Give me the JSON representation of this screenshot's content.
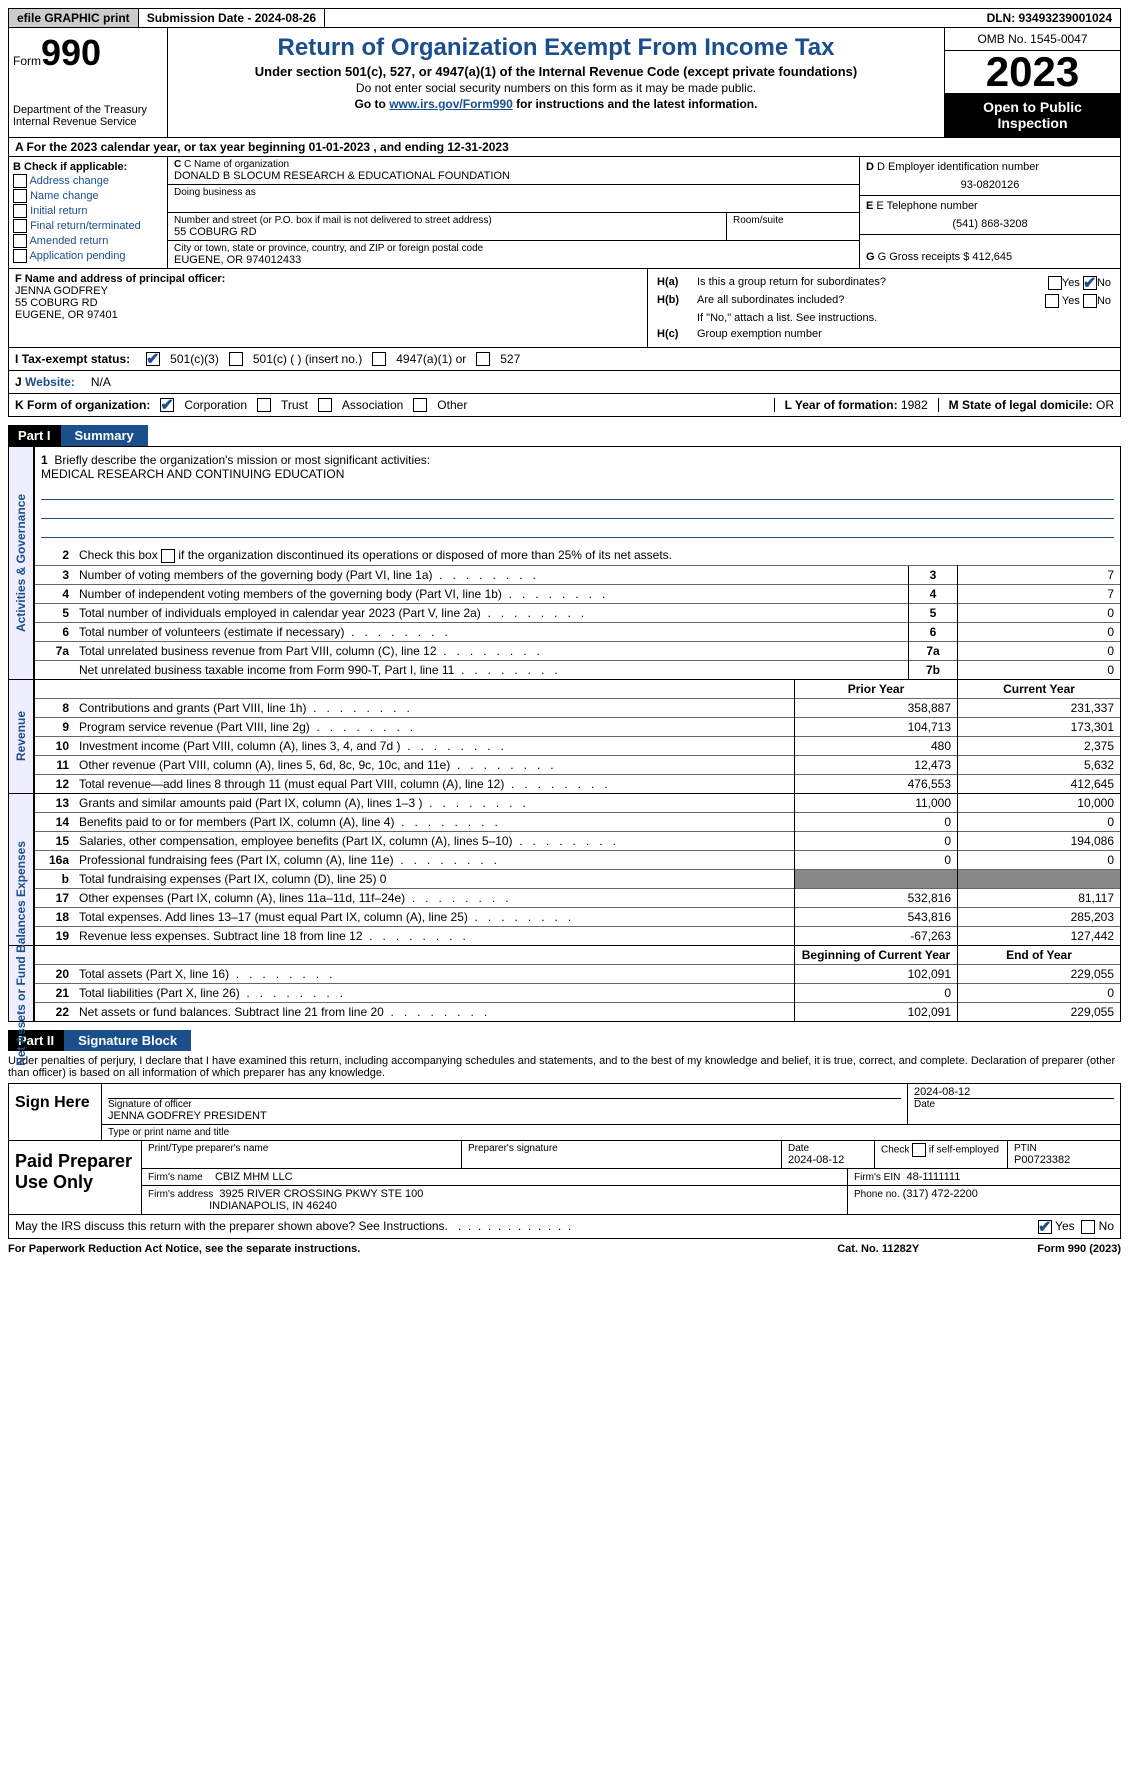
{
  "topbar": {
    "efile": "efile GRAPHIC print",
    "submission": "Submission Date - 2024-08-26",
    "dln": "DLN: 93493239001024"
  },
  "header": {
    "form_prefix": "Form",
    "form_num": "990",
    "dept": "Department of the Treasury Internal Revenue Service",
    "title": "Return of Organization Exempt From Income Tax",
    "sub1": "Under section 501(c), 527, or 4947(a)(1) of the Internal Revenue Code (except private foundations)",
    "sub2": "Do not enter social security numbers on this form as it may be made public.",
    "sub3_pre": "Go to ",
    "sub3_link": "www.irs.gov/Form990",
    "sub3_post": " for instructions and the latest information.",
    "omb": "OMB No. 1545-0047",
    "year": "2023",
    "open": "Open to Public Inspection"
  },
  "A": {
    "line": "A For the 2023 calendar year, or tax year beginning 01-01-2023    , and ending 12-31-2023"
  },
  "B": {
    "label": "B Check if applicable:",
    "opts": [
      "Address change",
      "Name change",
      "Initial return",
      "Final return/terminated",
      "Amended return",
      "Application pending"
    ]
  },
  "C": {
    "name_label": "C Name of organization",
    "name": "DONALD B SLOCUM RESEARCH & EDUCATIONAL FOUNDATION",
    "dba_label": "Doing business as",
    "dba": "",
    "addr_label": "Number and street (or P.O. box if mail is not delivered to street address)",
    "room_label": "Room/suite",
    "addr": "55 COBURG RD",
    "city_label": "City or town, state or province, country, and ZIP or foreign postal code",
    "city": "EUGENE, OR  974012433"
  },
  "D": {
    "label": "D Employer identification number",
    "val": "93-0820126"
  },
  "E": {
    "label": "E Telephone number",
    "val": "(541) 868-3208"
  },
  "G": {
    "label": "G Gross receipts $",
    "val": "412,645"
  },
  "F": {
    "label": "F  Name and address of principal officer:",
    "name": "JENNA GODFREY",
    "addr1": "55 COBURG RD",
    "addr2": "EUGENE, OR  97401"
  },
  "H": {
    "a_label": "Is this a group return for subordinates?",
    "a_yes": "Yes",
    "a_no": "No",
    "b_label": "Are all subordinates included?",
    "b_note": "If \"No,\" attach a list. See instructions.",
    "c_label": "Group exemption number"
  },
  "I": {
    "label": "Tax-exempt status:",
    "o1": "501(c)(3)",
    "o2": "501(c) (  ) (insert no.)",
    "o3": "4947(a)(1) or",
    "o4": "527"
  },
  "J": {
    "label": "Website:",
    "val": "N/A"
  },
  "K": {
    "label": "K Form of organization:",
    "o1": "Corporation",
    "o2": "Trust",
    "o3": "Association",
    "o4": "Other"
  },
  "L": {
    "label": "L Year of formation:",
    "val": "1982"
  },
  "M": {
    "label": "M State of legal domicile:",
    "val": "OR"
  },
  "part1": {
    "hdr": "Part I",
    "title": "Summary",
    "l1_label": "Briefly describe the organization's mission or most significant activities:",
    "l1_val": "MEDICAL RESEARCH AND CONTINUING EDUCATION",
    "l2": "Check this box       if the organization discontinued its operations or disposed of more than 25% of its net assets.",
    "lines_gov": [
      {
        "n": "3",
        "d": "Number of voting members of the governing body (Part VI, line 1a)",
        "b": "3",
        "v": "7"
      },
      {
        "n": "4",
        "d": "Number of independent voting members of the governing body (Part VI, line 1b)",
        "b": "4",
        "v": "7"
      },
      {
        "n": "5",
        "d": "Total number of individuals employed in calendar year 2023 (Part V, line 2a)",
        "b": "5",
        "v": "0"
      },
      {
        "n": "6",
        "d": "Total number of volunteers (estimate if necessary)",
        "b": "6",
        "v": "0"
      },
      {
        "n": "7a",
        "d": "Total unrelated business revenue from Part VIII, column (C), line 12",
        "b": "7a",
        "v": "0"
      },
      {
        "n": "",
        "d": "Net unrelated business taxable income from Form 990-T, Part I, line 11",
        "b": "7b",
        "v": "0"
      }
    ],
    "col_prior": "Prior Year",
    "col_curr": "Current Year",
    "lines_rev": [
      {
        "n": "8",
        "d": "Contributions and grants (Part VIII, line 1h)",
        "p": "358,887",
        "c": "231,337"
      },
      {
        "n": "9",
        "d": "Program service revenue (Part VIII, line 2g)",
        "p": "104,713",
        "c": "173,301"
      },
      {
        "n": "10",
        "d": "Investment income (Part VIII, column (A), lines 3, 4, and 7d )",
        "p": "480",
        "c": "2,375"
      },
      {
        "n": "11",
        "d": "Other revenue (Part VIII, column (A), lines 5, 6d, 8c, 9c, 10c, and 11e)",
        "p": "12,473",
        "c": "5,632"
      },
      {
        "n": "12",
        "d": "Total revenue—add lines 8 through 11 (must equal Part VIII, column (A), line 12)",
        "p": "476,553",
        "c": "412,645"
      }
    ],
    "lines_exp": [
      {
        "n": "13",
        "d": "Grants and similar amounts paid (Part IX, column (A), lines 1–3 )",
        "p": "11,000",
        "c": "10,000"
      },
      {
        "n": "14",
        "d": "Benefits paid to or for members (Part IX, column (A), line 4)",
        "p": "0",
        "c": "0"
      },
      {
        "n": "15",
        "d": "Salaries, other compensation, employee benefits (Part IX, column (A), lines 5–10)",
        "p": "0",
        "c": "194,086"
      },
      {
        "n": "16a",
        "d": "Professional fundraising fees (Part IX, column (A), line 11e)",
        "p": "0",
        "c": "0"
      },
      {
        "n": "b",
        "d": "Total fundraising expenses (Part IX, column (D), line 25) 0",
        "p": "",
        "c": "",
        "shade": true
      },
      {
        "n": "17",
        "d": "Other expenses (Part IX, column (A), lines 11a–11d, 11f–24e)",
        "p": "532,816",
        "c": "81,117"
      },
      {
        "n": "18",
        "d": "Total expenses. Add lines 13–17 (must equal Part IX, column (A), line 25)",
        "p": "543,816",
        "c": "285,203"
      },
      {
        "n": "19",
        "d": "Revenue less expenses. Subtract line 18 from line 12",
        "p": "-67,263",
        "c": "127,442"
      }
    ],
    "col_beg": "Beginning of Current Year",
    "col_end": "End of Year",
    "lines_net": [
      {
        "n": "20",
        "d": "Total assets (Part X, line 16)",
        "p": "102,091",
        "c": "229,055"
      },
      {
        "n": "21",
        "d": "Total liabilities (Part X, line 26)",
        "p": "0",
        "c": "0"
      },
      {
        "n": "22",
        "d": "Net assets or fund balances. Subtract line 21 from line 20",
        "p": "102,091",
        "c": "229,055"
      }
    ],
    "vlabels": {
      "gov": "Activities & Governance",
      "rev": "Revenue",
      "exp": "Expenses",
      "net": "Net Assets or Fund Balances"
    }
  },
  "part2": {
    "hdr": "Part II",
    "title": "Signature Block",
    "intro": "Under penalties of perjury, I declare that I have examined this return, including accompanying schedules and statements, and to the best of my knowledge and belief, it is true, correct, and complete. Declaration of preparer (other than officer) is based on all information of which preparer has any knowledge.",
    "sign_here": "Sign Here",
    "sig_label": "Signature of officer",
    "sig_name": "JENNA GODFREY PRESIDENT",
    "sig_type_label": "Type or print name and title",
    "date_label": "Date",
    "date_val": "2024-08-12",
    "paid": "Paid Preparer Use Only",
    "prep_name_label": "Print/Type preparer's name",
    "prep_sig_label": "Preparer's signature",
    "prep_date_label": "Date",
    "prep_date": "2024-08-12",
    "self_label": "Check        if self-employed",
    "ptin_label": "PTIN",
    "ptin": "P00723382",
    "firm_label": "Firm's name",
    "firm": "CBIZ MHM LLC",
    "ein_label": "Firm's EIN",
    "ein": "48-1111111",
    "faddr_label": "Firm's address",
    "faddr1": "3925 RIVER CROSSING PKWY STE 100",
    "faddr2": "INDIANAPOLIS, IN  46240",
    "phone_label": "Phone no.",
    "phone": "(317) 472-2200",
    "discuss": "May the IRS discuss this return with the preparer shown above? See Instructions.",
    "yes": "Yes",
    "no": "No"
  },
  "footer": {
    "l": "For Paperwork Reduction Act Notice, see the separate instructions.",
    "m": "Cat. No. 11282Y",
    "r": "Form 990 (2023)"
  }
}
